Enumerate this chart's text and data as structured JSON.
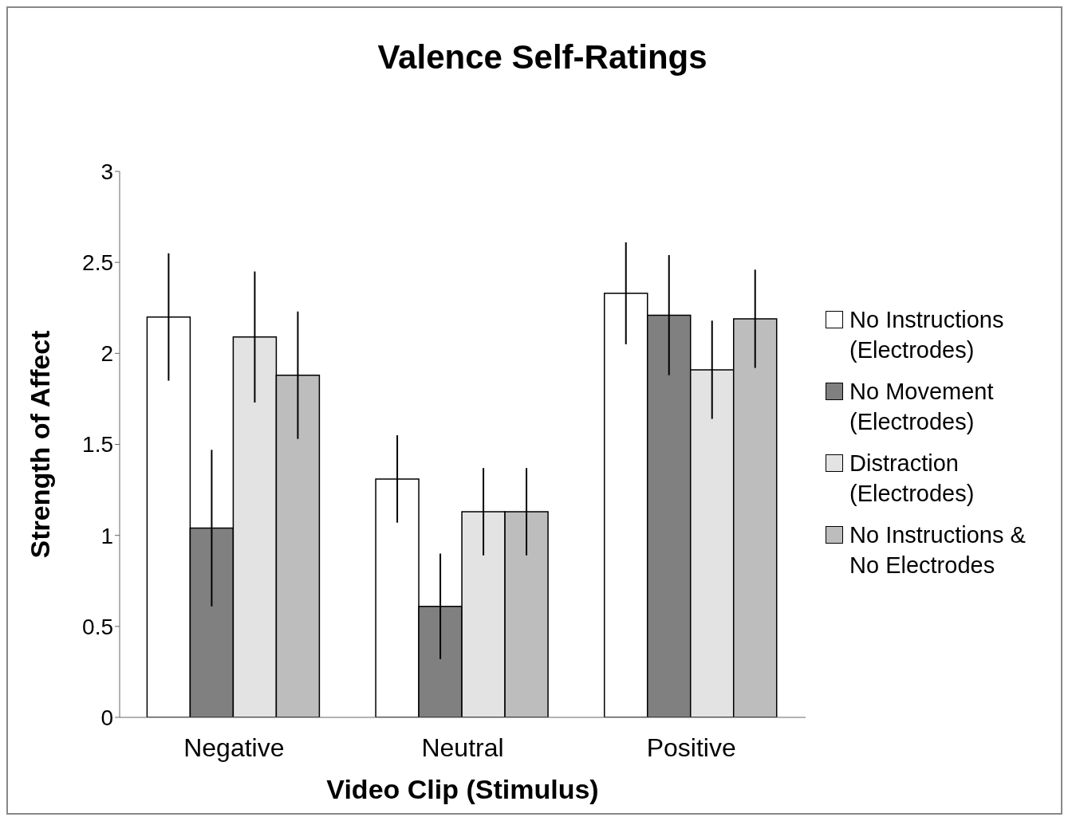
{
  "chart_data": {
    "type": "bar",
    "title": "Valence Self-Ratings",
    "xlabel": "Video Clip (Stimulus)",
    "ylabel": "Strength of Affect",
    "categories": [
      "Negative",
      "Neutral",
      "Positive"
    ],
    "series": [
      {
        "name": "No Instructions (Electrodes)",
        "color": "#ffffff",
        "values": [
          2.2,
          1.31,
          2.33
        ],
        "errors": [
          0.35,
          0.24,
          0.28
        ]
      },
      {
        "name": "No Movement (Electrodes)",
        "color": "#808080",
        "values": [
          1.04,
          0.61,
          2.21
        ],
        "errors": [
          0.43,
          0.29,
          0.33
        ]
      },
      {
        "name": "Distraction (Electrodes)",
        "color": "#e3e3e3",
        "values": [
          2.09,
          1.13,
          1.91
        ],
        "errors": [
          0.36,
          0.24,
          0.27
        ]
      },
      {
        "name": "No Instructions & No Electrodes",
        "color": "#bdbdbd",
        "values": [
          1.88,
          1.13,
          2.19
        ],
        "errors": [
          0.35,
          0.24,
          0.27
        ]
      }
    ],
    "ylim": [
      0,
      3
    ],
    "yticks": [
      0,
      0.5,
      1,
      1.5,
      2,
      2.5,
      3
    ],
    "grid": false,
    "legend": "right"
  }
}
